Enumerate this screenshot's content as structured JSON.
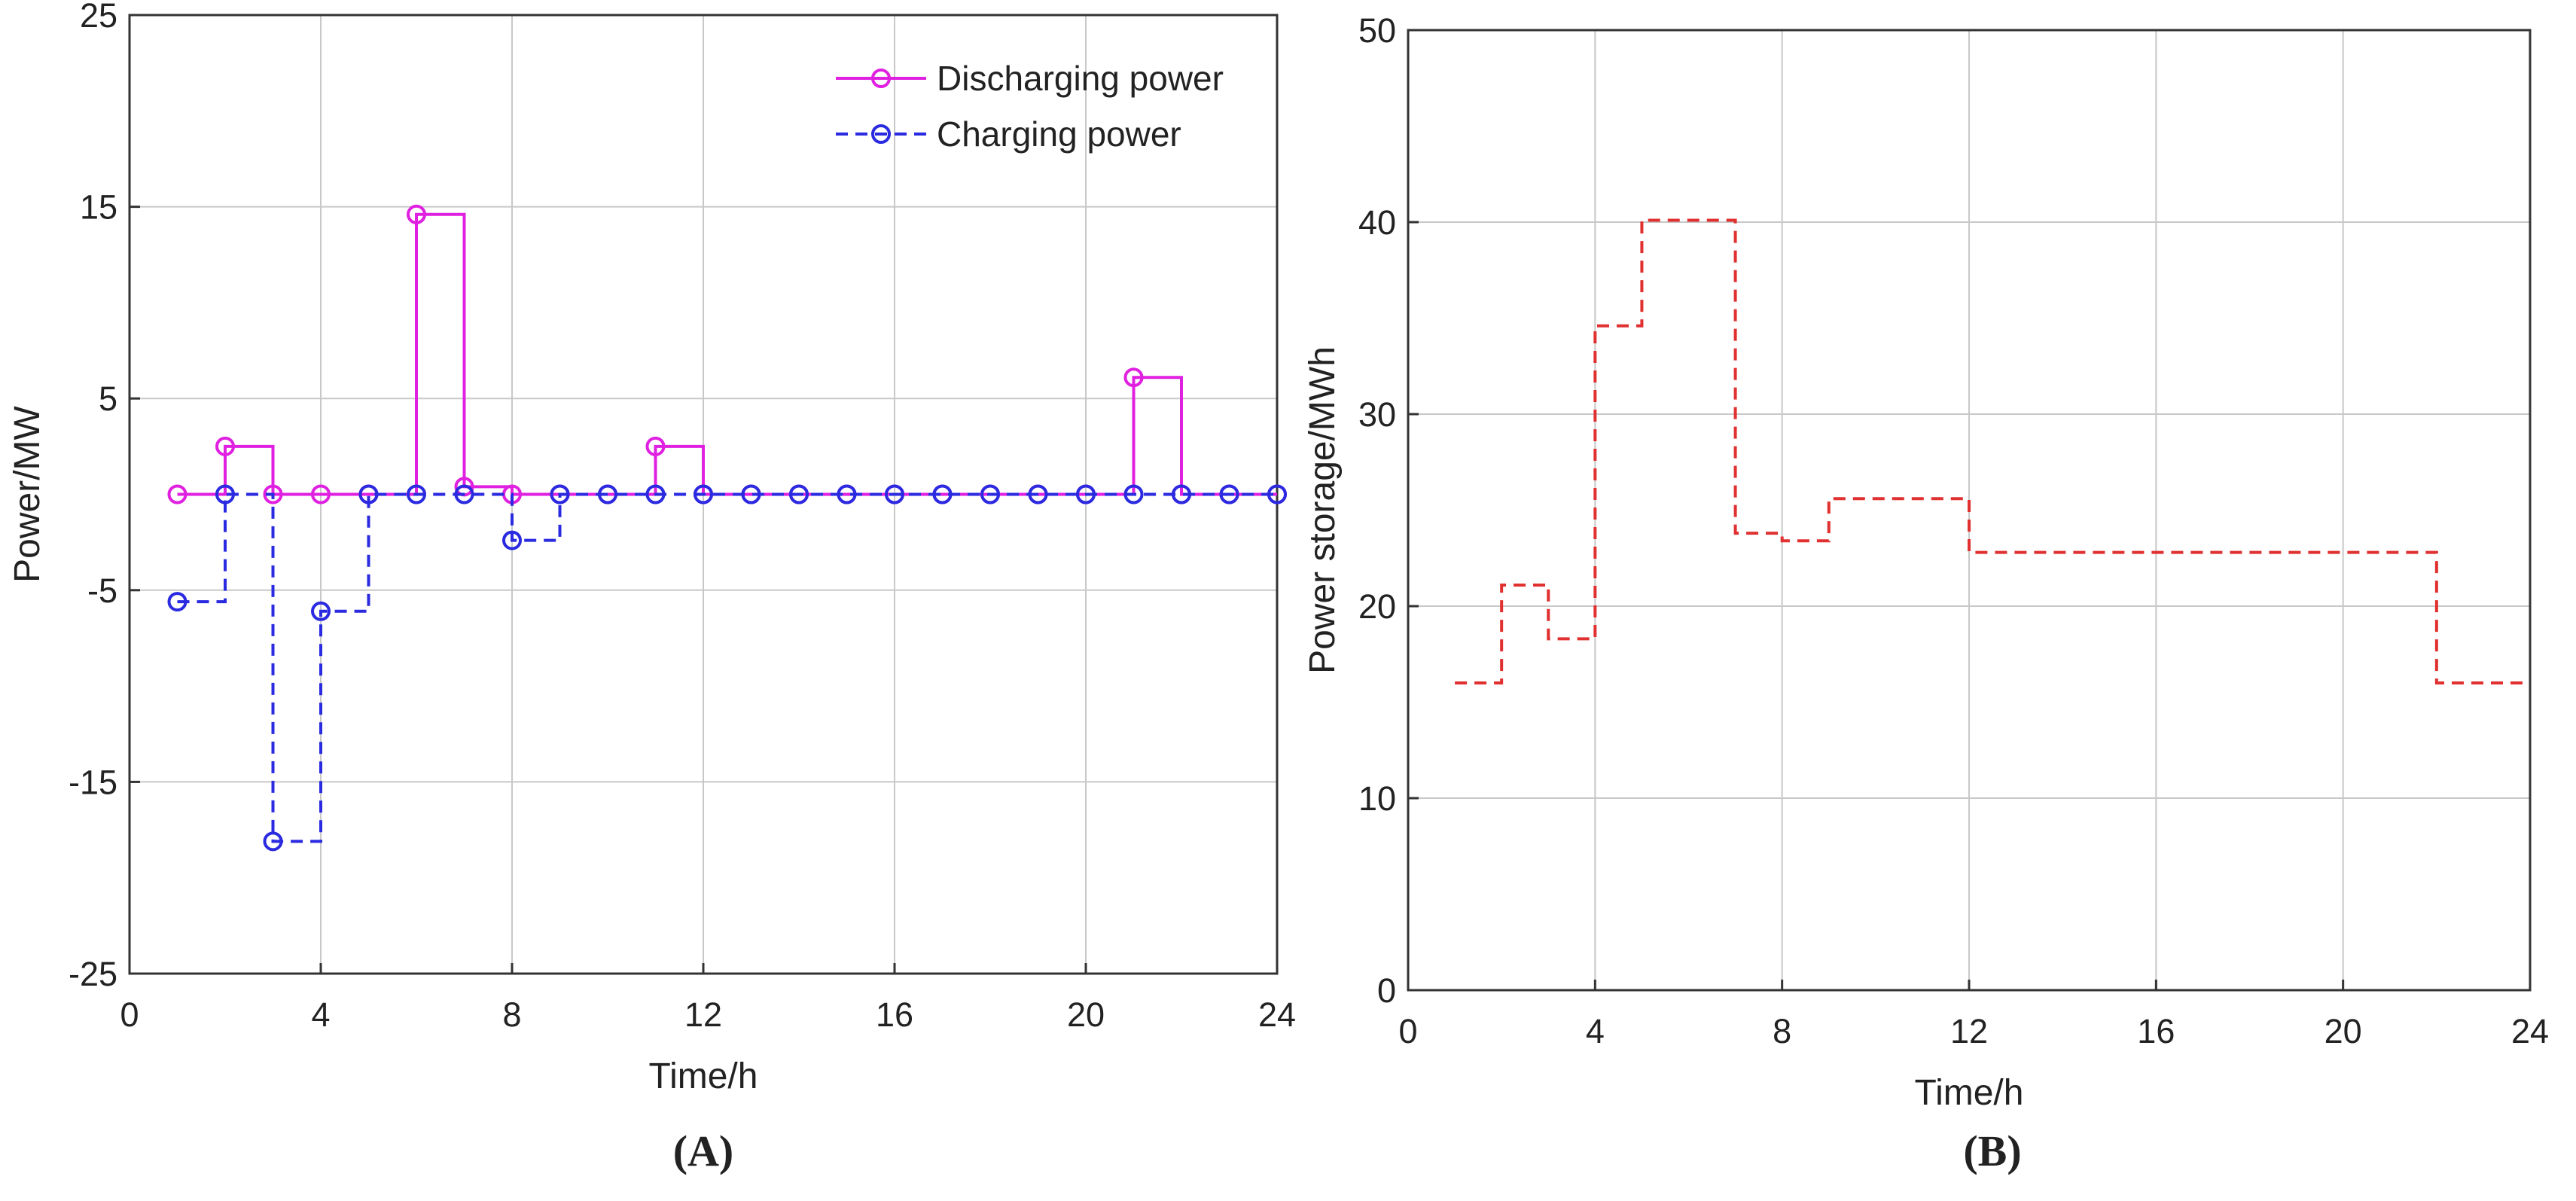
{
  "chart_data": [
    {
      "id": "A",
      "type": "line",
      "step": "post",
      "panel_label": "(A)",
      "title": "",
      "xlabel": "Time/h",
      "ylabel": "Power/MW",
      "xlim": [
        0,
        24
      ],
      "ylim": [
        -25,
        25
      ],
      "xticks": [
        0,
        4,
        8,
        12,
        16,
        20,
        24
      ],
      "yticks": [
        -25,
        -15,
        -5,
        5,
        15,
        25
      ],
      "grid": true,
      "legend_position": "top-right",
      "x": [
        1,
        2,
        3,
        4,
        5,
        6,
        7,
        8,
        9,
        10,
        11,
        12,
        13,
        14,
        15,
        16,
        17,
        18,
        19,
        20,
        21,
        22,
        23,
        24
      ],
      "series": [
        {
          "name": "Discharging power",
          "color": "#e020e0",
          "linestyle": "solid",
          "marker": "circle",
          "values": [
            0,
            2.5,
            0,
            0,
            0,
            14.6,
            0.4,
            0,
            0,
            0,
            2.5,
            0,
            0,
            0,
            0,
            0,
            0,
            0,
            0,
            0,
            6.1,
            0,
            0,
            0
          ]
        },
        {
          "name": "Charging power",
          "color": "#2a2ae0",
          "linestyle": "dashed",
          "marker": "circle",
          "values": [
            -5.6,
            0,
            -18.1,
            -6.1,
            0,
            0,
            0,
            -2.4,
            0,
            0,
            0,
            0,
            0,
            0,
            0,
            0,
            0,
            0,
            0,
            0,
            0,
            0,
            0,
            0
          ]
        }
      ]
    },
    {
      "id": "B",
      "type": "line",
      "step": "post",
      "panel_label": "(B)",
      "title": "",
      "xlabel": "Time/h",
      "ylabel": "Power storage/MWh",
      "xlim": [
        0,
        24
      ],
      "ylim": [
        0,
        50
      ],
      "xticks": [
        0,
        4,
        8,
        12,
        16,
        20,
        24
      ],
      "yticks": [
        0,
        10,
        20,
        30,
        40,
        50
      ],
      "grid": true,
      "x": [
        1,
        2,
        3,
        4,
        5,
        6,
        7,
        8,
        9,
        10,
        11,
        12,
        13,
        14,
        15,
        16,
        17,
        18,
        19,
        20,
        21,
        22,
        23,
        24
      ],
      "series": [
        {
          "name": "Power storage",
          "color": "#e03030",
          "linestyle": "dashed",
          "marker": "none",
          "values": [
            16.0,
            21.1,
            18.3,
            34.6,
            40.1,
            40.1,
            23.8,
            23.4,
            25.6,
            25.6,
            25.6,
            22.8,
            22.8,
            22.8,
            22.8,
            22.8,
            22.8,
            22.8,
            22.8,
            22.8,
            22.8,
            16.0,
            16.0,
            16.0
          ]
        }
      ]
    }
  ]
}
